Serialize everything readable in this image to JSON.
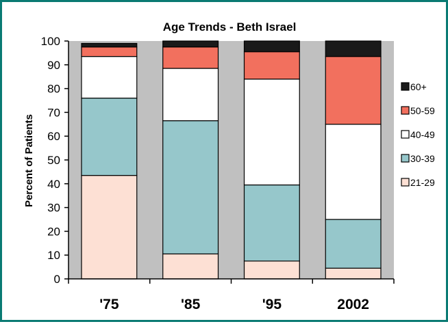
{
  "chart_data": {
    "type": "bar",
    "stacked": true,
    "title": "Age Trends - Beth Israel",
    "xlabel": "",
    "ylabel": "Percent of Patients",
    "ylim": [
      0,
      100
    ],
    "yticks": [
      0,
      10,
      20,
      30,
      40,
      50,
      60,
      70,
      80,
      90,
      100
    ],
    "grid": false,
    "legend_position": "right",
    "categories": [
      "'75",
      "'85",
      "'95",
      "2002"
    ],
    "series": [
      {
        "name": "21-29",
        "color": "#fde0d4",
        "values": [
          43.5,
          10.5,
          7.5,
          4.5
        ]
      },
      {
        "name": "30-39",
        "color": "#96c7cb",
        "values": [
          32.5,
          56,
          32,
          20.5
        ]
      },
      {
        "name": "40-49",
        "color": "#ffffff",
        "values": [
          17.5,
          22,
          44.5,
          40
        ]
      },
      {
        "name": "50-59",
        "color": "#f2705e",
        "values": [
          4,
          9,
          11.5,
          28.5
        ]
      },
      {
        "name": "60+",
        "color": "#1a1a1a",
        "values": [
          1.5,
          2.5,
          4.5,
          6.5
        ]
      }
    ],
    "legend_order": [
      "60+",
      "50-59",
      "40-49",
      "30-39",
      "21-29"
    ]
  },
  "colors": {
    "frame_border": "#0a7a73",
    "plot_background": "#c0c0c0"
  }
}
